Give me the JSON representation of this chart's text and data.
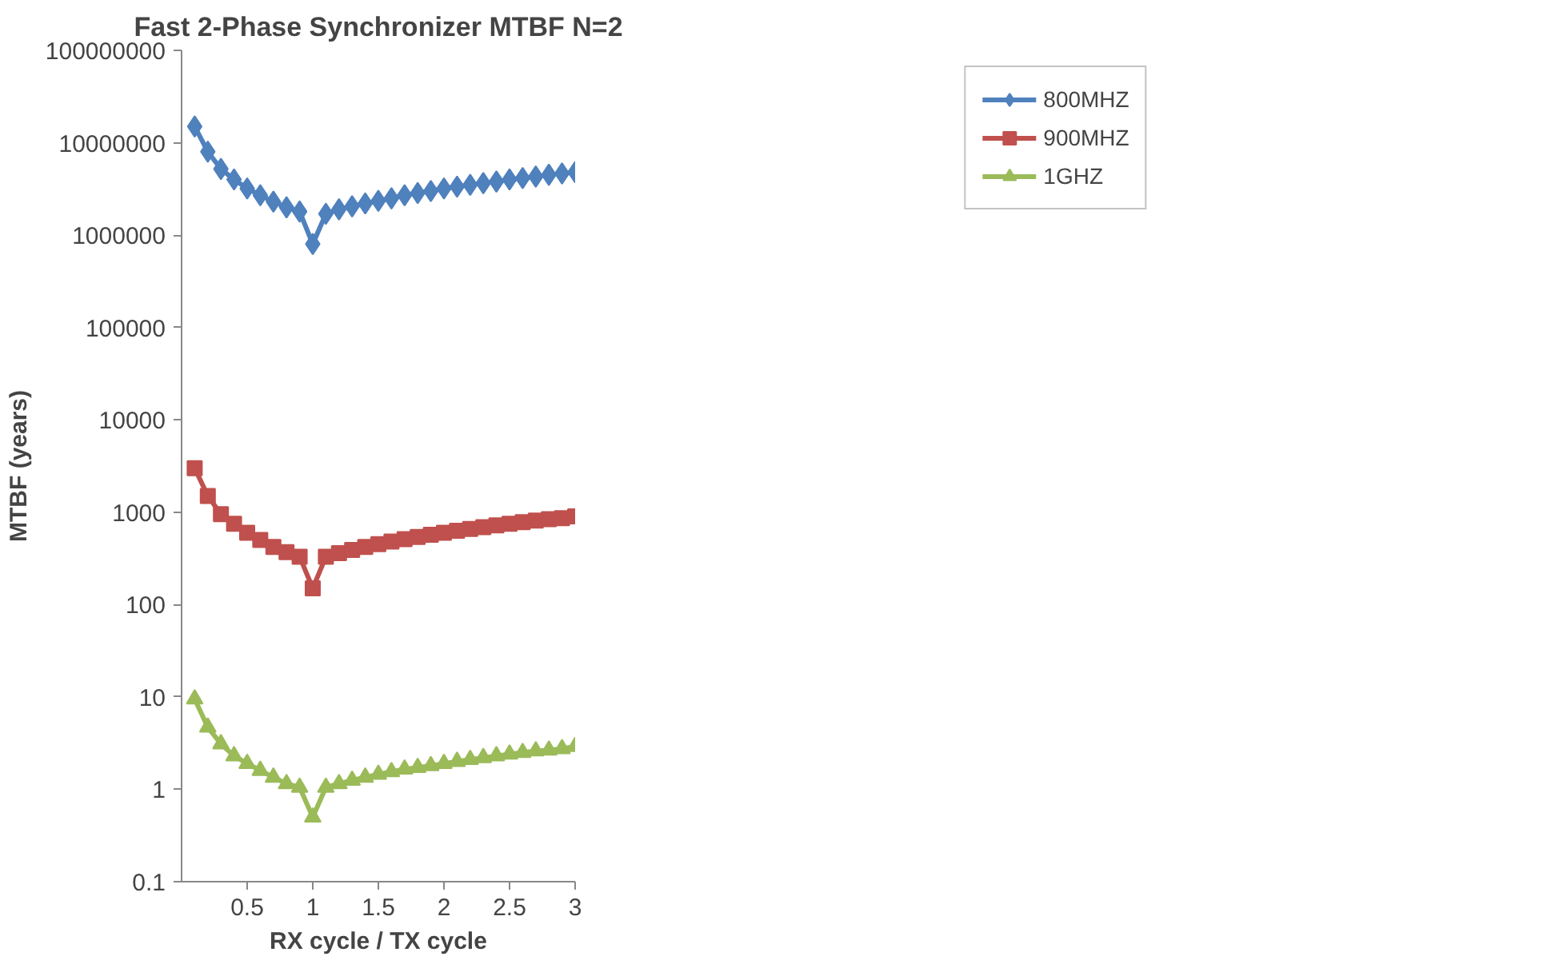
{
  "chart_data": {
    "type": "line",
    "title": "Fast 2-Phase Synchronizer MTBF N=2",
    "xlabel": "RX cycle / TX cycle",
    "ylabel": "MTBF (years)",
    "x": [
      0.1,
      0.2,
      0.3,
      0.4,
      0.5,
      0.6,
      0.7,
      0.8,
      0.9,
      1.0,
      1.1,
      1.2,
      1.3,
      1.4,
      1.5,
      1.6,
      1.7,
      1.8,
      1.9,
      2.0,
      2.1,
      2.2,
      2.3,
      2.4,
      2.5,
      2.6,
      2.7,
      2.8,
      2.9,
      3.0
    ],
    "series": [
      {
        "name": "800MHZ",
        "color": "#4f81bd",
        "marker": "diamond",
        "values": [
          15000000,
          8000000,
          5200000,
          4000000,
          3200000,
          2700000,
          2300000,
          2000000,
          1800000,
          800000,
          1700000,
          1900000,
          2050000,
          2200000,
          2350000,
          2500000,
          2700000,
          2850000,
          3000000,
          3200000,
          3350000,
          3500000,
          3650000,
          3800000,
          4000000,
          4150000,
          4300000,
          4500000,
          4650000,
          4800000
        ]
      },
      {
        "name": "900MHZ",
        "color": "#c0504d",
        "marker": "square",
        "values": [
          3000,
          1500,
          950,
          750,
          600,
          500,
          420,
          370,
          330,
          150,
          330,
          360,
          390,
          420,
          450,
          480,
          510,
          540,
          570,
          600,
          630,
          660,
          690,
          720,
          750,
          780,
          810,
          840,
          860,
          900
        ]
      },
      {
        "name": "1GHZ",
        "color": "#9bbb59",
        "marker": "triangle",
        "values": [
          9.5,
          4.7,
          3.1,
          2.3,
          1.9,
          1.6,
          1.35,
          1.15,
          1.05,
          0.5,
          1.05,
          1.15,
          1.25,
          1.35,
          1.45,
          1.55,
          1.65,
          1.72,
          1.8,
          1.9,
          2.0,
          2.1,
          2.2,
          2.3,
          2.4,
          2.5,
          2.6,
          2.65,
          2.75,
          2.9
        ]
      }
    ],
    "log": "y",
    "xlim": [
      0,
      3
    ],
    "xticks": [
      0.5,
      1,
      1.5,
      2,
      2.5,
      3
    ],
    "ylim": [
      0.1,
      100000000
    ],
    "yticks": [
      0.1,
      1,
      10,
      100,
      1000,
      10000,
      100000,
      1000000,
      10000000,
      100000000
    ],
    "legend": "top right"
  }
}
